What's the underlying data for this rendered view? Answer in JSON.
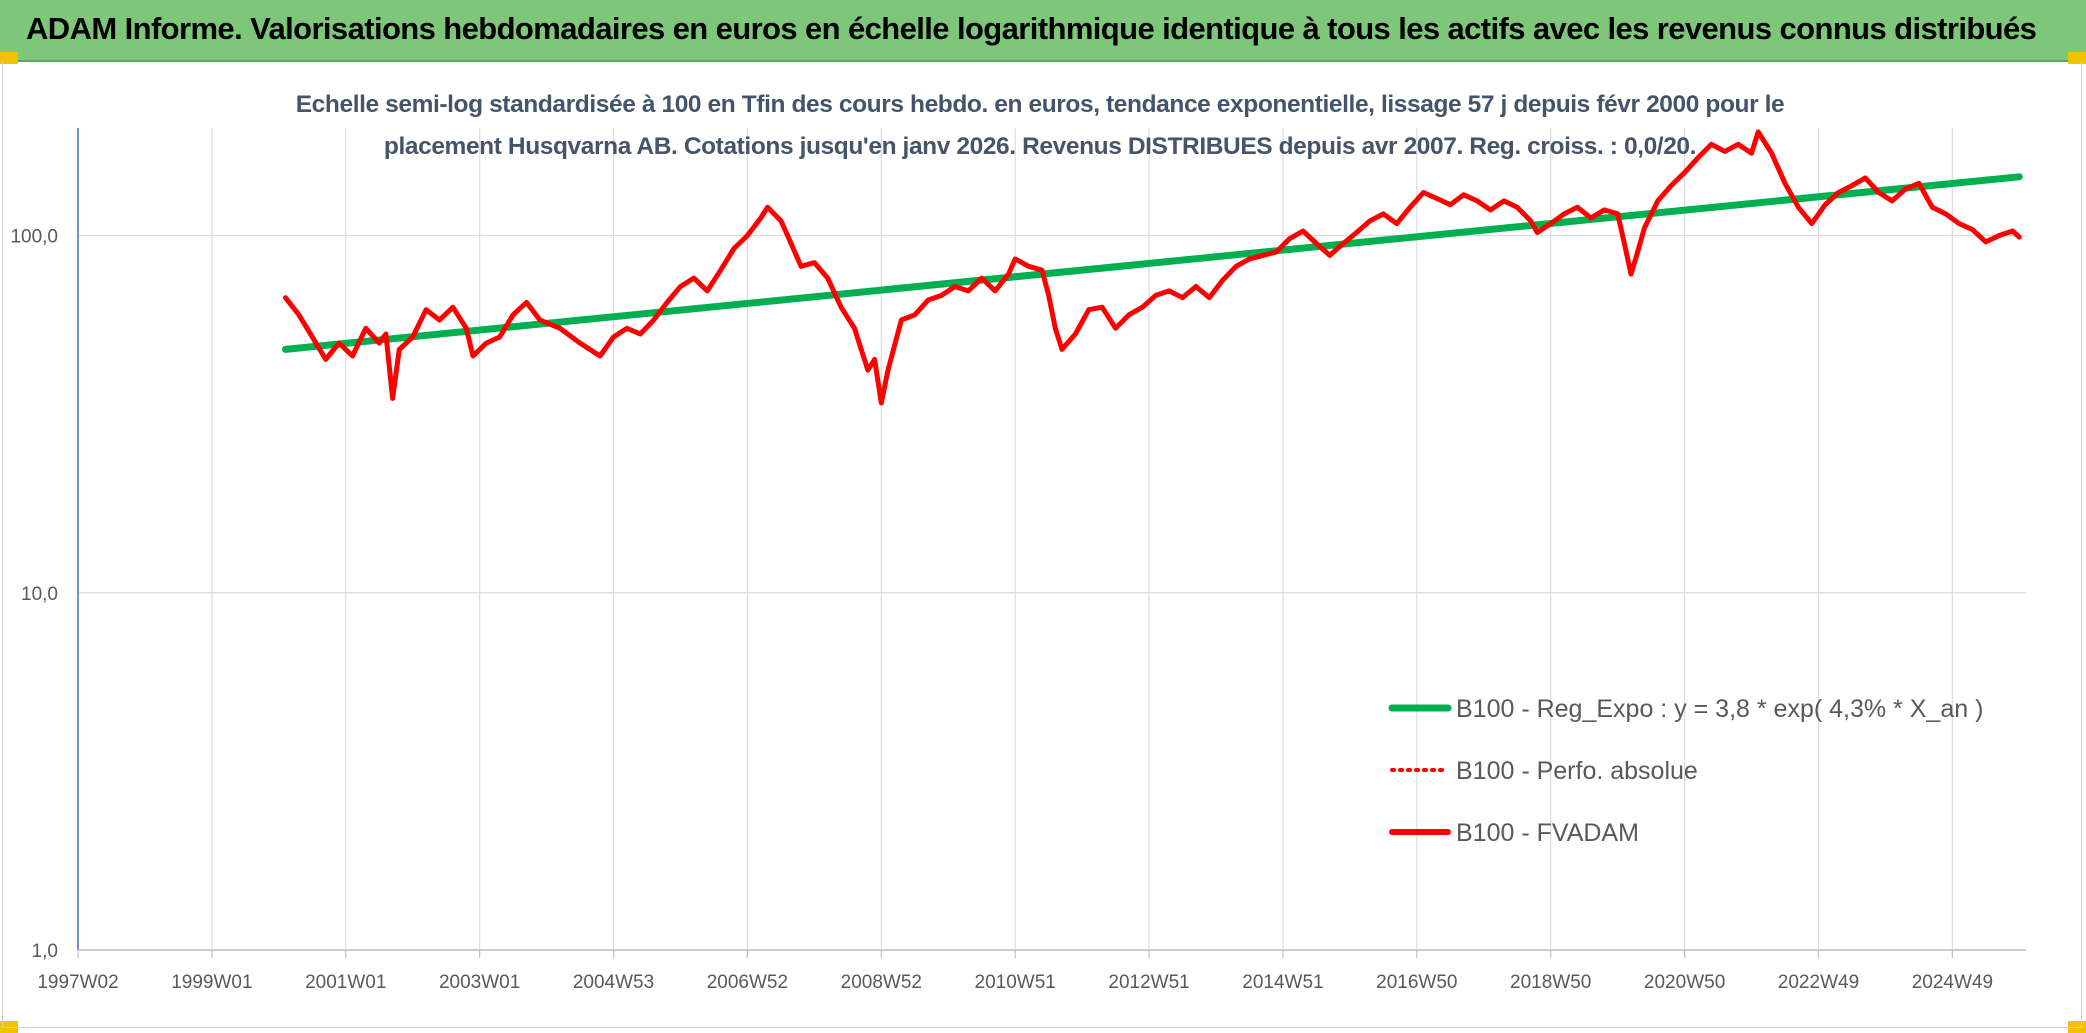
{
  "header": {
    "title": "ADAM Informe. Valorisations hebdomadaires en euros en échelle logarithmique identique à tous les actifs avec les revenus connus distribués"
  },
  "chart_data": {
    "type": "line",
    "title_line1": "Echelle semi-log standardisée à 100 en Tfin des cours hebdo. en euros, tendance exponentielle, lissage 57 j depuis févr 2000 pour le",
    "title_line2": "placement Husqvarna AB. Cotations jusqu'en janv 2026. Revenus DISTRIBUES depuis avr 2007. Reg. croiss. : 0,0/20.",
    "y_scale": "log",
    "ylim": [
      1,
      200
    ],
    "y_ticks": [
      {
        "value": 1,
        "label": "1,0"
      },
      {
        "value": 10,
        "label": "10,0"
      },
      {
        "value": 100,
        "label": "100,0"
      }
    ],
    "x_range": [
      1997.0,
      2026.1
    ],
    "x_ticks": [
      {
        "x": 1997.0,
        "label": "1997W02"
      },
      {
        "x": 1999.0,
        "label": "1999W01"
      },
      {
        "x": 2001.0,
        "label": "2001W01"
      },
      {
        "x": 2003.0,
        "label": "2003W01"
      },
      {
        "x": 2005.0,
        "label": "2004W53"
      },
      {
        "x": 2007.0,
        "label": "2006W52"
      },
      {
        "x": 2009.0,
        "label": "2008W52"
      },
      {
        "x": 2011.0,
        "label": "2010W51"
      },
      {
        "x": 2013.0,
        "label": "2012W51"
      },
      {
        "x": 2015.0,
        "label": "2014W51"
      },
      {
        "x": 2017.0,
        "label": "2016W50"
      },
      {
        "x": 2019.0,
        "label": "2018W50"
      },
      {
        "x": 2021.0,
        "label": "2020W50"
      },
      {
        "x": 2023.0,
        "label": "2022W49"
      },
      {
        "x": 2025.0,
        "label": "2024W49"
      }
    ],
    "grid": true,
    "legend_position": "lower-right",
    "series": [
      {
        "name": "B100 - Reg_Expo : y = 3,8 * exp( 4,3% *  X_an )",
        "color": "#00b050",
        "style": "solid-thick",
        "points": [
          [
            2000.1,
            48
          ],
          [
            2026.0,
            146
          ]
        ]
      },
      {
        "name": "B100 - Perfo. absolue",
        "color": "#ff0000",
        "style": "dotted",
        "points": []
      },
      {
        "name": "B100 - FVADAM",
        "color": "#ff0000",
        "style": "solid",
        "points": [
          [
            2000.1,
            67
          ],
          [
            2000.3,
            60
          ],
          [
            2000.5,
            52
          ],
          [
            2000.7,
            45
          ],
          [
            2000.9,
            50
          ],
          [
            2001.1,
            46
          ],
          [
            2001.3,
            55
          ],
          [
            2001.5,
            50
          ],
          [
            2001.6,
            53
          ],
          [
            2001.7,
            35
          ],
          [
            2001.8,
            48
          ],
          [
            2002.0,
            52
          ],
          [
            2002.2,
            62
          ],
          [
            2002.4,
            58
          ],
          [
            2002.6,
            63
          ],
          [
            2002.8,
            55
          ],
          [
            2002.9,
            46
          ],
          [
            2003.1,
            50
          ],
          [
            2003.3,
            52
          ],
          [
            2003.5,
            60
          ],
          [
            2003.7,
            65
          ],
          [
            2003.9,
            58
          ],
          [
            2004.2,
            55
          ],
          [
            2004.5,
            50
          ],
          [
            2004.8,
            46
          ],
          [
            2005.0,
            52
          ],
          [
            2005.2,
            55
          ],
          [
            2005.4,
            53
          ],
          [
            2005.6,
            58
          ],
          [
            2005.8,
            65
          ],
          [
            2006.0,
            72
          ],
          [
            2006.2,
            76
          ],
          [
            2006.4,
            70
          ],
          [
            2006.6,
            80
          ],
          [
            2006.8,
            92
          ],
          [
            2007.0,
            100
          ],
          [
            2007.2,
            112
          ],
          [
            2007.3,
            120
          ],
          [
            2007.5,
            110
          ],
          [
            2007.6,
            100
          ],
          [
            2007.8,
            82
          ],
          [
            2008.0,
            84
          ],
          [
            2008.2,
            76
          ],
          [
            2008.4,
            63
          ],
          [
            2008.6,
            55
          ],
          [
            2008.7,
            48
          ],
          [
            2008.8,
            42
          ],
          [
            2008.9,
            45
          ],
          [
            2009.0,
            34
          ],
          [
            2009.1,
            42
          ],
          [
            2009.3,
            58
          ],
          [
            2009.5,
            60
          ],
          [
            2009.7,
            66
          ],
          [
            2009.9,
            68
          ],
          [
            2010.1,
            72
          ],
          [
            2010.3,
            70
          ],
          [
            2010.5,
            76
          ],
          [
            2010.7,
            70
          ],
          [
            2010.9,
            78
          ],
          [
            2011.0,
            86
          ],
          [
            2011.2,
            82
          ],
          [
            2011.4,
            80
          ],
          [
            2011.5,
            68
          ],
          [
            2011.6,
            55
          ],
          [
            2011.7,
            48
          ],
          [
            2011.9,
            53
          ],
          [
            2012.1,
            62
          ],
          [
            2012.3,
            63
          ],
          [
            2012.5,
            55
          ],
          [
            2012.7,
            60
          ],
          [
            2012.9,
            63
          ],
          [
            2013.1,
            68
          ],
          [
            2013.3,
            70
          ],
          [
            2013.5,
            67
          ],
          [
            2013.7,
            72
          ],
          [
            2013.9,
            67
          ],
          [
            2014.1,
            75
          ],
          [
            2014.3,
            82
          ],
          [
            2014.5,
            86
          ],
          [
            2014.7,
            88
          ],
          [
            2014.9,
            90
          ],
          [
            2015.1,
            98
          ],
          [
            2015.3,
            103
          ],
          [
            2015.5,
            95
          ],
          [
            2015.7,
            88
          ],
          [
            2015.9,
            95
          ],
          [
            2016.1,
            102
          ],
          [
            2016.3,
            110
          ],
          [
            2016.5,
            115
          ],
          [
            2016.7,
            108
          ],
          [
            2016.9,
            120
          ],
          [
            2017.1,
            132
          ],
          [
            2017.3,
            127
          ],
          [
            2017.5,
            122
          ],
          [
            2017.7,
            130
          ],
          [
            2017.9,
            125
          ],
          [
            2018.1,
            118
          ],
          [
            2018.3,
            125
          ],
          [
            2018.5,
            120
          ],
          [
            2018.7,
            110
          ],
          [
            2018.8,
            102
          ],
          [
            2019.0,
            108
          ],
          [
            2019.2,
            115
          ],
          [
            2019.4,
            120
          ],
          [
            2019.6,
            112
          ],
          [
            2019.8,
            118
          ],
          [
            2020.0,
            115
          ],
          [
            2020.1,
            95
          ],
          [
            2020.2,
            78
          ],
          [
            2020.3,
            90
          ],
          [
            2020.4,
            105
          ],
          [
            2020.6,
            125
          ],
          [
            2020.8,
            138
          ],
          [
            2021.0,
            150
          ],
          [
            2021.2,
            165
          ],
          [
            2021.4,
            180
          ],
          [
            2021.6,
            172
          ],
          [
            2021.8,
            180
          ],
          [
            2022.0,
            170
          ],
          [
            2022.1,
            195
          ],
          [
            2022.3,
            170
          ],
          [
            2022.5,
            140
          ],
          [
            2022.7,
            120
          ],
          [
            2022.9,
            108
          ],
          [
            2023.1,
            122
          ],
          [
            2023.3,
            132
          ],
          [
            2023.5,
            138
          ],
          [
            2023.7,
            145
          ],
          [
            2023.9,
            132
          ],
          [
            2024.1,
            125
          ],
          [
            2024.3,
            135
          ],
          [
            2024.5,
            140
          ],
          [
            2024.7,
            120
          ],
          [
            2024.9,
            115
          ],
          [
            2025.1,
            108
          ],
          [
            2025.3,
            104
          ],
          [
            2025.5,
            96
          ],
          [
            2025.7,
            100
          ],
          [
            2025.9,
            103
          ],
          [
            2026.0,
            99
          ]
        ]
      }
    ]
  }
}
